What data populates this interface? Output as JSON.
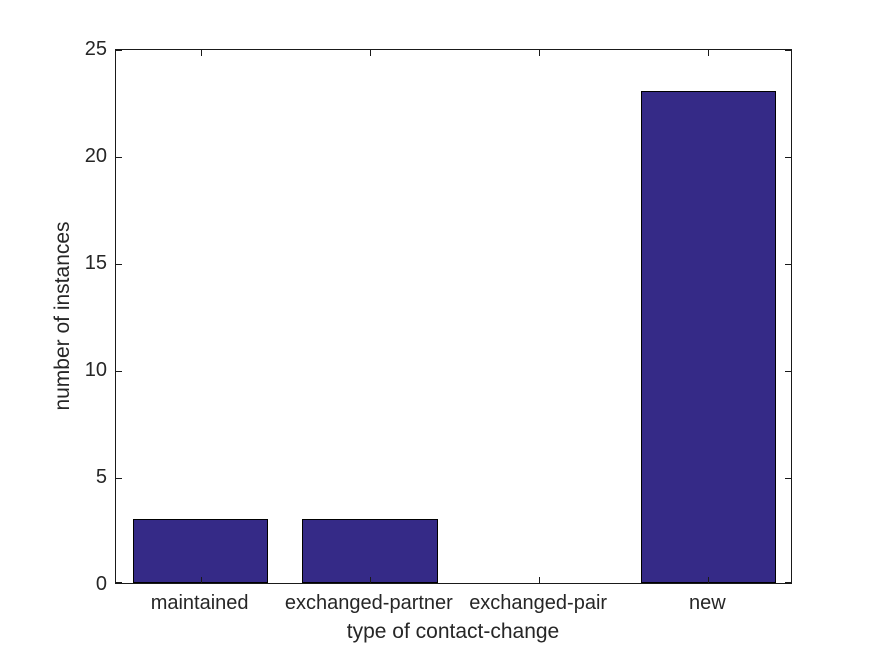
{
  "figure": {
    "background_color": "#ffffff"
  },
  "chart_data": {
    "type": "bar",
    "title": "",
    "categories": [
      "maintained",
      "exchanged-partner",
      "exchanged-pair",
      "new"
    ],
    "values": [
      3,
      3,
      0,
      23
    ],
    "xlabel": "type of contact-change",
    "ylabel": "number of instances",
    "ylim": [
      0,
      25
    ],
    "yticks": [
      0,
      5,
      10,
      15,
      20,
      25
    ],
    "ytick_labels": [
      "0",
      "5",
      "10",
      "15",
      "20",
      "25"
    ],
    "grid": false,
    "legend": null,
    "box": "on",
    "tick_direction": "in",
    "bar_width_fraction": 0.8,
    "bar_color": "#352A87",
    "bar_edge_color": "#000000",
    "axis_color": "#262626"
  }
}
